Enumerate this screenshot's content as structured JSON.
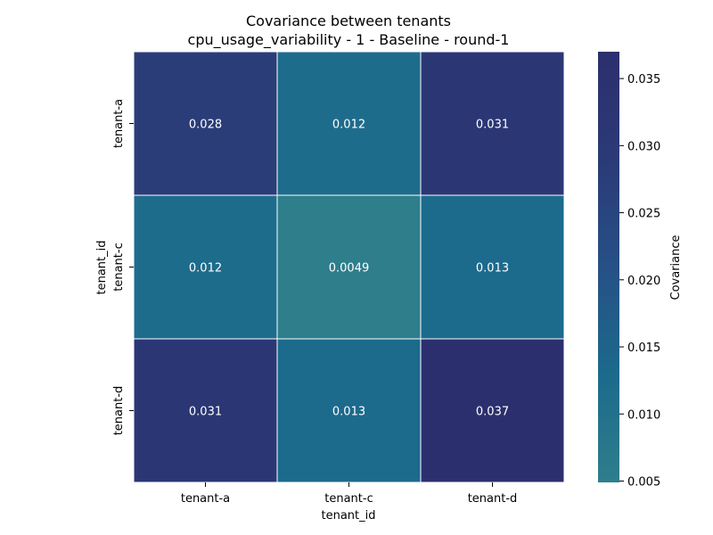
{
  "chart_data": {
    "type": "heatmap",
    "title": "Covariance between tenants",
    "subtitle": "cpu_usage_variability - 1 - Baseline - round-1",
    "xlabel": "tenant_id",
    "ylabel": "tenant_id",
    "x_categories": [
      "tenant-a",
      "tenant-c",
      "tenant-d"
    ],
    "y_categories": [
      "tenant-a",
      "tenant-c",
      "tenant-d"
    ],
    "values": [
      [
        0.028,
        0.012,
        0.031
      ],
      [
        0.012,
        0.0049,
        0.013
      ],
      [
        0.031,
        0.013,
        0.037
      ]
    ],
    "cell_labels": [
      [
        "0.028",
        "0.012",
        "0.031"
      ],
      [
        "0.012",
        "0.0049",
        "0.013"
      ],
      [
        "0.031",
        "0.013",
        "0.037"
      ]
    ],
    "colorbar": {
      "label": "Covariance",
      "range": [
        0.0049,
        0.037
      ],
      "ticks": [
        "0.005",
        "0.010",
        "0.015",
        "0.020",
        "0.025",
        "0.030",
        "0.035"
      ],
      "tick_values": [
        0.005,
        0.01,
        0.015,
        0.02,
        0.025,
        0.03,
        0.035
      ],
      "colormap": [
        "#2e7e8c",
        "#1c6a8c",
        "#265086",
        "#2b3a77",
        "#2c2f6e"
      ]
    },
    "grid": false
  }
}
